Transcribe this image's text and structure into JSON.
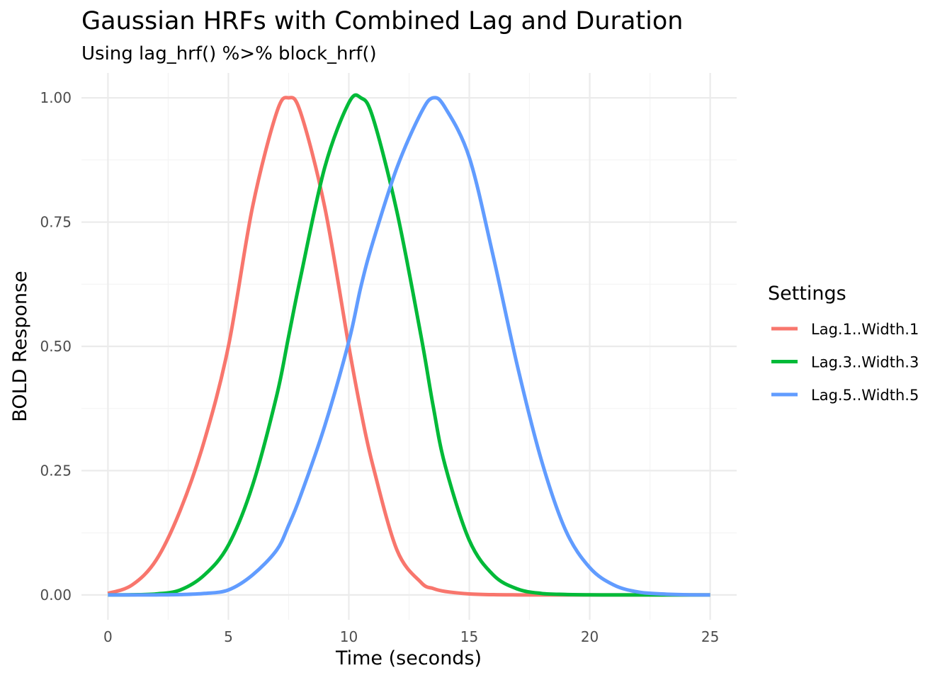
{
  "chart_data": {
    "type": "line",
    "title": "Gaussian HRFs with Combined Lag and Duration",
    "subtitle": "Using lag_hrf() %>% block_hrf()",
    "xlabel": "Time (seconds)",
    "ylabel": "BOLD Response",
    "xlim": [
      -1.1,
      26.1
    ],
    "ylim": [
      -0.05,
      1.05
    ],
    "x_ticks": [
      0,
      5,
      10,
      15,
      20,
      25
    ],
    "x_tick_labels": [
      "0",
      "5",
      "10",
      "15",
      "20",
      "25"
    ],
    "y_ticks": [
      0,
      0.25,
      0.5,
      0.75,
      1.0
    ],
    "y_tick_labels": [
      "0.00",
      "0.25",
      "0.50",
      "0.75",
      "1.00"
    ],
    "grid": true,
    "legend": {
      "title": "Settings",
      "position": "right"
    },
    "x": [
      0,
      1,
      2,
      3,
      4,
      5,
      6,
      7,
      7.5,
      8,
      9,
      10,
      10.5,
      11,
      12,
      13,
      13.5,
      14,
      15,
      16,
      17,
      18,
      19,
      20,
      21,
      22,
      23,
      24,
      25
    ],
    "series": [
      {
        "name": "Lag.1..Width.1",
        "color": "#F8766D",
        "values": [
          0.003,
          0.02,
          0.07,
          0.17,
          0.31,
          0.5,
          0.78,
          0.97,
          1.0,
          0.97,
          0.78,
          0.5,
          0.37,
          0.26,
          0.09,
          0.025,
          0.013,
          0.007,
          0.002,
          0.0005,
          0.0001,
          0,
          0,
          0,
          0,
          0,
          0,
          0,
          0
        ]
      },
      {
        "name": "Lag.3..Width.3",
        "color": "#00BA38",
        "values": [
          0.0001,
          0.0004,
          0.002,
          0.01,
          0.04,
          0.1,
          0.22,
          0.4,
          0.52,
          0.64,
          0.86,
          0.99,
          1.0,
          0.96,
          0.77,
          0.52,
          0.38,
          0.26,
          0.11,
          0.04,
          0.012,
          0.003,
          0.001,
          0.0002,
          0,
          0,
          0,
          0,
          0
        ]
      },
      {
        "name": "Lag.5..Width.5",
        "color": "#619CFF",
        "values": [
          0,
          0,
          0.0001,
          0.0007,
          0.003,
          0.01,
          0.04,
          0.09,
          0.14,
          0.2,
          0.34,
          0.51,
          0.62,
          0.71,
          0.86,
          0.97,
          1.0,
          0.98,
          0.88,
          0.68,
          0.46,
          0.27,
          0.13,
          0.055,
          0.02,
          0.006,
          0.002,
          0.0004,
          0.0001
        ]
      }
    ]
  }
}
